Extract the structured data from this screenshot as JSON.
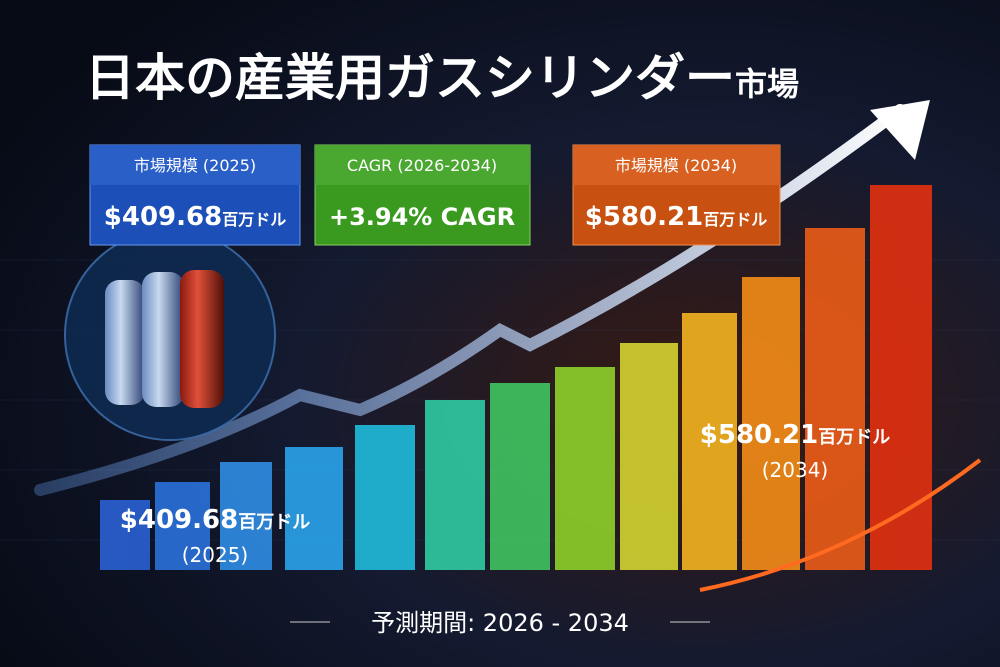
{
  "title": {
    "main": "日本の産業用ガスシリンダー",
    "suffix": "市場"
  },
  "cards": [
    {
      "label": "市場規模 (2025)",
      "value": "$409.68",
      "unit": "百万ドル"
    },
    {
      "label": "CAGR (2026-2034)",
      "value": "+3.94% CAGR"
    },
    {
      "label": "市場規模 (2034)",
      "value": "$580.21",
      "unit": "百万ドル"
    }
  ],
  "annotations": [
    {
      "value": "$409.68",
      "unit": "百万ドル",
      "year": "(2025)"
    },
    {
      "value": "$580.21",
      "unit": "百万ドル",
      "year": "(2034)"
    }
  ],
  "footer": "予測期間: 2026 - 2034"
}
